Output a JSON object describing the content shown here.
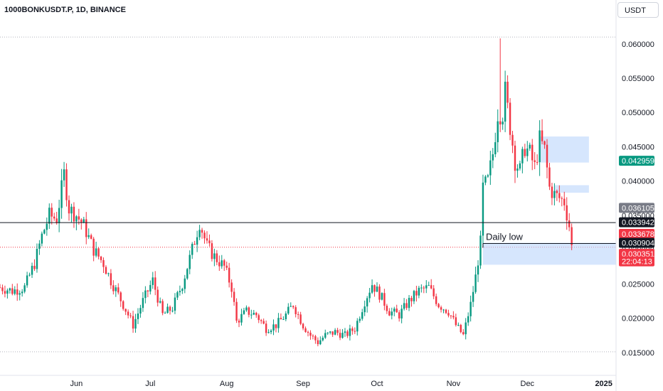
{
  "chart_data": {
    "type": "candlestick",
    "title": "1000BONKUSDT.P, 1D, BINANCE",
    "currency": "USDT",
    "ylim": [
      0.0125,
      0.0635
    ],
    "y_ticks": [
      "0.015000",
      "0.020000",
      "0.025000",
      "0.030000",
      "0.035000",
      "0.040000",
      "0.045000",
      "0.050000",
      "0.055000",
      "0.060000"
    ],
    "y_tick_values": [
      0.015,
      0.02,
      0.025,
      0.03,
      0.035,
      0.04,
      0.045,
      0.05,
      0.055,
      0.06
    ],
    "x_start": "2024-05-01",
    "x_end": "2025-01-06",
    "x_ticks": [
      {
        "label": "Jun",
        "date": "2024-06-01"
      },
      {
        "label": "Jul",
        "date": "2024-07-01"
      },
      {
        "label": "Aug",
        "date": "2024-08-01"
      },
      {
        "label": "Sep",
        "date": "2024-09-01"
      },
      {
        "label": "Oct",
        "date": "2024-10-01"
      },
      {
        "label": "Nov",
        "date": "2024-11-01"
      },
      {
        "label": "Dec",
        "date": "2024-12-01"
      },
      {
        "label": "2025",
        "date": "2025-01-01"
      }
    ],
    "colors": {
      "up": "#089981",
      "down": "#f23645",
      "zone": "#bbd6fb",
      "line": "#131722",
      "dotted": "#b2b5be",
      "current": "#f23645"
    },
    "price_path": [
      [
        "2024-05-01",
        0.0245
      ],
      [
        "2024-05-06",
        0.024
      ],
      [
        "2024-05-11",
        0.0245
      ],
      [
        "2024-05-15",
        0.028
      ],
      [
        "2024-05-18",
        0.032
      ],
      [
        "2024-05-21",
        0.035
      ],
      [
        "2024-05-24",
        0.0345
      ],
      [
        "2024-05-27",
        0.041
      ],
      [
        "2024-05-29",
        0.036
      ],
      [
        "2024-06-01",
        0.035
      ],
      [
        "2024-06-04",
        0.0335
      ],
      [
        "2024-06-08",
        0.03
      ],
      [
        "2024-06-12",
        0.028
      ],
      [
        "2024-06-15",
        0.0255
      ],
      [
        "2024-06-20",
        0.022
      ],
      [
        "2024-06-24",
        0.019
      ],
      [
        "2024-06-28",
        0.0225
      ],
      [
        "2024-07-02",
        0.0255
      ],
      [
        "2024-07-06",
        0.0205
      ],
      [
        "2024-07-10",
        0.0215
      ],
      [
        "2024-07-14",
        0.025
      ],
      [
        "2024-07-18",
        0.03
      ],
      [
        "2024-07-21",
        0.034
      ],
      [
        "2024-07-24",
        0.0305
      ],
      [
        "2024-07-27",
        0.029
      ],
      [
        "2024-07-31",
        0.0275
      ],
      [
        "2024-08-03",
        0.0245
      ],
      [
        "2024-08-05",
        0.0195
      ],
      [
        "2024-08-09",
        0.021
      ],
      [
        "2024-08-13",
        0.0205
      ],
      [
        "2024-08-17",
        0.0185
      ],
      [
        "2024-08-21",
        0.019
      ],
      [
        "2024-08-25",
        0.0205
      ],
      [
        "2024-08-28",
        0.022
      ],
      [
        "2024-09-01",
        0.019
      ],
      [
        "2024-09-04",
        0.0175
      ],
      [
        "2024-09-07",
        0.0165
      ],
      [
        "2024-09-10",
        0.0175
      ],
      [
        "2024-09-14",
        0.018
      ],
      [
        "2024-09-18",
        0.0175
      ],
      [
        "2024-09-22",
        0.0185
      ],
      [
        "2024-09-26",
        0.0225
      ],
      [
        "2024-09-29",
        0.025
      ],
      [
        "2024-10-02",
        0.0235
      ],
      [
        "2024-10-06",
        0.021
      ],
      [
        "2024-10-10",
        0.0205
      ],
      [
        "2024-10-14",
        0.0225
      ],
      [
        "2024-10-18",
        0.024
      ],
      [
        "2024-10-22",
        0.0245
      ],
      [
        "2024-10-26",
        0.022
      ],
      [
        "2024-10-30",
        0.021
      ],
      [
        "2024-11-02",
        0.019
      ],
      [
        "2024-11-05",
        0.0175
      ],
      [
        "2024-11-08",
        0.022
      ],
      [
        "2024-11-10",
        0.026
      ],
      [
        "2024-11-12",
        0.031
      ],
      [
        "2024-11-13",
        0.039
      ],
      [
        "2024-11-15",
        0.04
      ],
      [
        "2024-11-17",
        0.044
      ],
      [
        "2024-11-19",
        0.05
      ],
      [
        "2024-11-21",
        0.05
      ],
      [
        "2024-11-22",
        0.053
      ],
      [
        "2024-11-24",
        0.048
      ],
      [
        "2024-11-26",
        0.043
      ],
      [
        "2024-11-28",
        0.0415
      ],
      [
        "2024-11-30",
        0.045
      ],
      [
        "2024-12-02",
        0.044
      ],
      [
        "2024-12-04",
        0.042
      ],
      [
        "2024-12-06",
        0.046
      ],
      [
        "2024-12-08",
        0.0445
      ],
      [
        "2024-12-10",
        0.039
      ],
      [
        "2024-12-12",
        0.038
      ],
      [
        "2024-12-14",
        0.0375
      ],
      [
        "2024-12-16",
        0.037
      ],
      [
        "2024-12-18",
        0.0335
      ],
      [
        "2024-12-19",
        0.0304
      ]
    ],
    "lines": [
      {
        "name": "resistance-line",
        "y": 0.03394,
        "style": "solid",
        "x_start": "2024-05-01",
        "x_end": "2025-01-06"
      },
      {
        "name": "daily-low-line",
        "y": 0.0309,
        "style": "solid",
        "x_start": "2024-11-13",
        "x_end": "2025-01-06"
      },
      {
        "name": "current-price-line",
        "y": 0.030351,
        "style": "dotted",
        "x_start": "2024-05-01",
        "x_end": "2025-01-06"
      },
      {
        "name": "top-line",
        "y": 0.061,
        "style": "dotted",
        "x_start": "2024-05-01",
        "x_end": "2025-01-06"
      },
      {
        "name": "bottom-line",
        "y": 0.0151,
        "style": "dotted",
        "x_start": "2024-05-01",
        "x_end": "2025-01-06"
      }
    ],
    "zones": [
      {
        "name": "supply-zone-upper",
        "y1": 0.0427,
        "y2": 0.0465,
        "x_start": "2024-12-06",
        "x_end": "2024-12-26"
      },
      {
        "name": "supply-zone-lower",
        "y1": 0.0383,
        "y2": 0.0394,
        "x_start": "2024-12-12",
        "x_end": "2024-12-26"
      },
      {
        "name": "demand-zone",
        "y1": 0.0278,
        "y2": 0.031,
        "x_start": "2024-11-13",
        "x_end": "2025-01-06"
      }
    ],
    "annotations": [
      {
        "text": "Daily low",
        "date": "2024-11-13",
        "y": 0.0314
      }
    ],
    "price_badges": [
      {
        "name": "badge-0.042959",
        "value": "0.042959",
        "y": 0.042959,
        "color": "#089981"
      },
      {
        "name": "badge-0.036105",
        "value": "0.036105",
        "y": 0.0361,
        "color": "#787b86"
      },
      {
        "name": "badge-0.033942",
        "value": "0.033942",
        "y": 0.034,
        "color": "#131722"
      },
      {
        "name": "badge-0.033678",
        "value": "0.033678",
        "y": 0.0323,
        "color": "#f23645"
      },
      {
        "name": "badge-0.030904",
        "value": "0.030904",
        "y": 0.031,
        "color": "#131722"
      },
      {
        "name": "badge-0.030351",
        "value": "0.030351",
        "y": 0.0294,
        "color": "#f23645"
      },
      {
        "name": "badge-countdown",
        "value": "22:04:13",
        "y": 0.0283,
        "color": "#f23645"
      }
    ],
    "peak": {
      "date": "2024-11-20",
      "high": 0.0608
    }
  }
}
